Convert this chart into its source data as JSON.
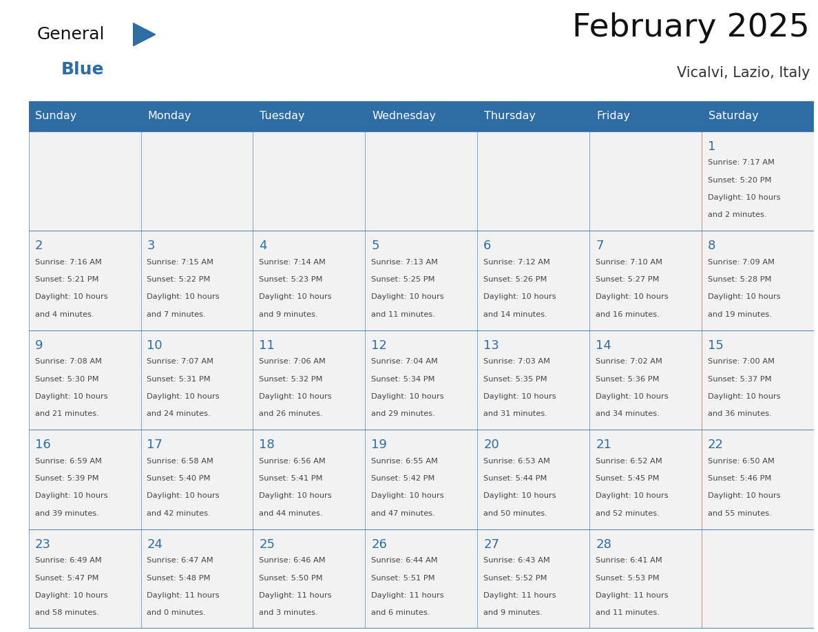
{
  "title": "February 2025",
  "subtitle": "Vicalvi, Lazio, Italy",
  "days_of_week": [
    "Sunday",
    "Monday",
    "Tuesday",
    "Wednesday",
    "Thursday",
    "Friday",
    "Saturday"
  ],
  "header_bg": "#2E6DA4",
  "header_text": "#FFFFFF",
  "cell_bg": "#F2F2F2",
  "border_color": "#2E6DA4",
  "day_number_color": "#2E6DA4",
  "cell_text_color": "#444444",
  "logo_general_color": "#111111",
  "logo_blue_color": "#2E6DA4",
  "calendar_data": [
    [
      null,
      null,
      null,
      null,
      null,
      null,
      {
        "day": "1",
        "sunrise": "7:17 AM",
        "sunset": "5:20 PM",
        "dl1": "Daylight: 10 hours",
        "dl2": "and 2 minutes."
      }
    ],
    [
      {
        "day": "2",
        "sunrise": "7:16 AM",
        "sunset": "5:21 PM",
        "dl1": "Daylight: 10 hours",
        "dl2": "and 4 minutes."
      },
      {
        "day": "3",
        "sunrise": "7:15 AM",
        "sunset": "5:22 PM",
        "dl1": "Daylight: 10 hours",
        "dl2": "and 7 minutes."
      },
      {
        "day": "4",
        "sunrise": "7:14 AM",
        "sunset": "5:23 PM",
        "dl1": "Daylight: 10 hours",
        "dl2": "and 9 minutes."
      },
      {
        "day": "5",
        "sunrise": "7:13 AM",
        "sunset": "5:25 PM",
        "dl1": "Daylight: 10 hours",
        "dl2": "and 11 minutes."
      },
      {
        "day": "6",
        "sunrise": "7:12 AM",
        "sunset": "5:26 PM",
        "dl1": "Daylight: 10 hours",
        "dl2": "and 14 minutes."
      },
      {
        "day": "7",
        "sunrise": "7:10 AM",
        "sunset": "5:27 PM",
        "dl1": "Daylight: 10 hours",
        "dl2": "and 16 minutes."
      },
      {
        "day": "8",
        "sunrise": "7:09 AM",
        "sunset": "5:28 PM",
        "dl1": "Daylight: 10 hours",
        "dl2": "and 19 minutes."
      }
    ],
    [
      {
        "day": "9",
        "sunrise": "7:08 AM",
        "sunset": "5:30 PM",
        "dl1": "Daylight: 10 hours",
        "dl2": "and 21 minutes."
      },
      {
        "day": "10",
        "sunrise": "7:07 AM",
        "sunset": "5:31 PM",
        "dl1": "Daylight: 10 hours",
        "dl2": "and 24 minutes."
      },
      {
        "day": "11",
        "sunrise": "7:06 AM",
        "sunset": "5:32 PM",
        "dl1": "Daylight: 10 hours",
        "dl2": "and 26 minutes."
      },
      {
        "day": "12",
        "sunrise": "7:04 AM",
        "sunset": "5:34 PM",
        "dl1": "Daylight: 10 hours",
        "dl2": "and 29 minutes."
      },
      {
        "day": "13",
        "sunrise": "7:03 AM",
        "sunset": "5:35 PM",
        "dl1": "Daylight: 10 hours",
        "dl2": "and 31 minutes."
      },
      {
        "day": "14",
        "sunrise": "7:02 AM",
        "sunset": "5:36 PM",
        "dl1": "Daylight: 10 hours",
        "dl2": "and 34 minutes."
      },
      {
        "day": "15",
        "sunrise": "7:00 AM",
        "sunset": "5:37 PM",
        "dl1": "Daylight: 10 hours",
        "dl2": "and 36 minutes."
      }
    ],
    [
      {
        "day": "16",
        "sunrise": "6:59 AM",
        "sunset": "5:39 PM",
        "dl1": "Daylight: 10 hours",
        "dl2": "and 39 minutes."
      },
      {
        "day": "17",
        "sunrise": "6:58 AM",
        "sunset": "5:40 PM",
        "dl1": "Daylight: 10 hours",
        "dl2": "and 42 minutes."
      },
      {
        "day": "18",
        "sunrise": "6:56 AM",
        "sunset": "5:41 PM",
        "dl1": "Daylight: 10 hours",
        "dl2": "and 44 minutes."
      },
      {
        "day": "19",
        "sunrise": "6:55 AM",
        "sunset": "5:42 PM",
        "dl1": "Daylight: 10 hours",
        "dl2": "and 47 minutes."
      },
      {
        "day": "20",
        "sunrise": "6:53 AM",
        "sunset": "5:44 PM",
        "dl1": "Daylight: 10 hours",
        "dl2": "and 50 minutes."
      },
      {
        "day": "21",
        "sunrise": "6:52 AM",
        "sunset": "5:45 PM",
        "dl1": "Daylight: 10 hours",
        "dl2": "and 52 minutes."
      },
      {
        "day": "22",
        "sunrise": "6:50 AM",
        "sunset": "5:46 PM",
        "dl1": "Daylight: 10 hours",
        "dl2": "and 55 minutes."
      }
    ],
    [
      {
        "day": "23",
        "sunrise": "6:49 AM",
        "sunset": "5:47 PM",
        "dl1": "Daylight: 10 hours",
        "dl2": "and 58 minutes."
      },
      {
        "day": "24",
        "sunrise": "6:47 AM",
        "sunset": "5:48 PM",
        "dl1": "Daylight: 11 hours",
        "dl2": "and 0 minutes."
      },
      {
        "day": "25",
        "sunrise": "6:46 AM",
        "sunset": "5:50 PM",
        "dl1": "Daylight: 11 hours",
        "dl2": "and 3 minutes."
      },
      {
        "day": "26",
        "sunrise": "6:44 AM",
        "sunset": "5:51 PM",
        "dl1": "Daylight: 11 hours",
        "dl2": "and 6 minutes."
      },
      {
        "day": "27",
        "sunrise": "6:43 AM",
        "sunset": "5:52 PM",
        "dl1": "Daylight: 11 hours",
        "dl2": "and 9 minutes."
      },
      {
        "day": "28",
        "sunrise": "6:41 AM",
        "sunset": "5:53 PM",
        "dl1": "Daylight: 11 hours",
        "dl2": "and 11 minutes."
      },
      null
    ]
  ]
}
